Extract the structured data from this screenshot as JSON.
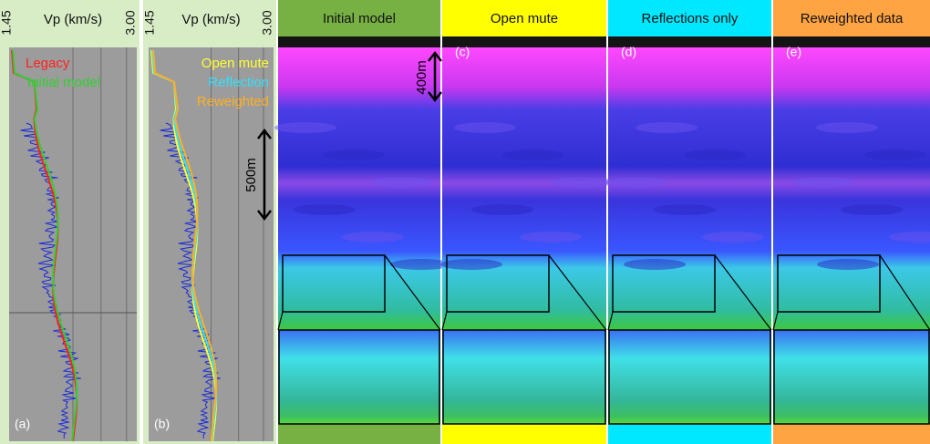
{
  "well_panels": [
    {
      "axis_label": "Vp (km/s)",
      "min_label": "1.45",
      "max_label": "3.00",
      "panel_label": "(a)",
      "legend": [
        {
          "text": "Legacy",
          "color": "#ff2020"
        },
        {
          "text": "Initial model",
          "color": "#30d030"
        }
      ]
    },
    {
      "axis_label": "Vp (km/s)",
      "min_label": "1.45",
      "max_label": "3.00",
      "panel_label": "(b)",
      "legend": [
        {
          "text": "Open mute",
          "color": "#ffff30"
        },
        {
          "text": "Reflection",
          "color": "#30e0ff"
        },
        {
          "text": "Reweighted",
          "color": "#ffb020"
        }
      ]
    }
  ],
  "sections": [
    {
      "title": "Initial model",
      "color": "#77b043"
    },
    {
      "title": "Open mute",
      "panel_label": "(c)",
      "color": "#ffff00"
    },
    {
      "title": "Reflections only",
      "panel_label": "(d)",
      "color": "#00e8ff"
    },
    {
      "title": "Reweighted data",
      "panel_label": "(e)",
      "color": "#ffa442"
    }
  ],
  "scale_bars": [
    {
      "label": "400m"
    },
    {
      "label": "500m"
    }
  ]
}
